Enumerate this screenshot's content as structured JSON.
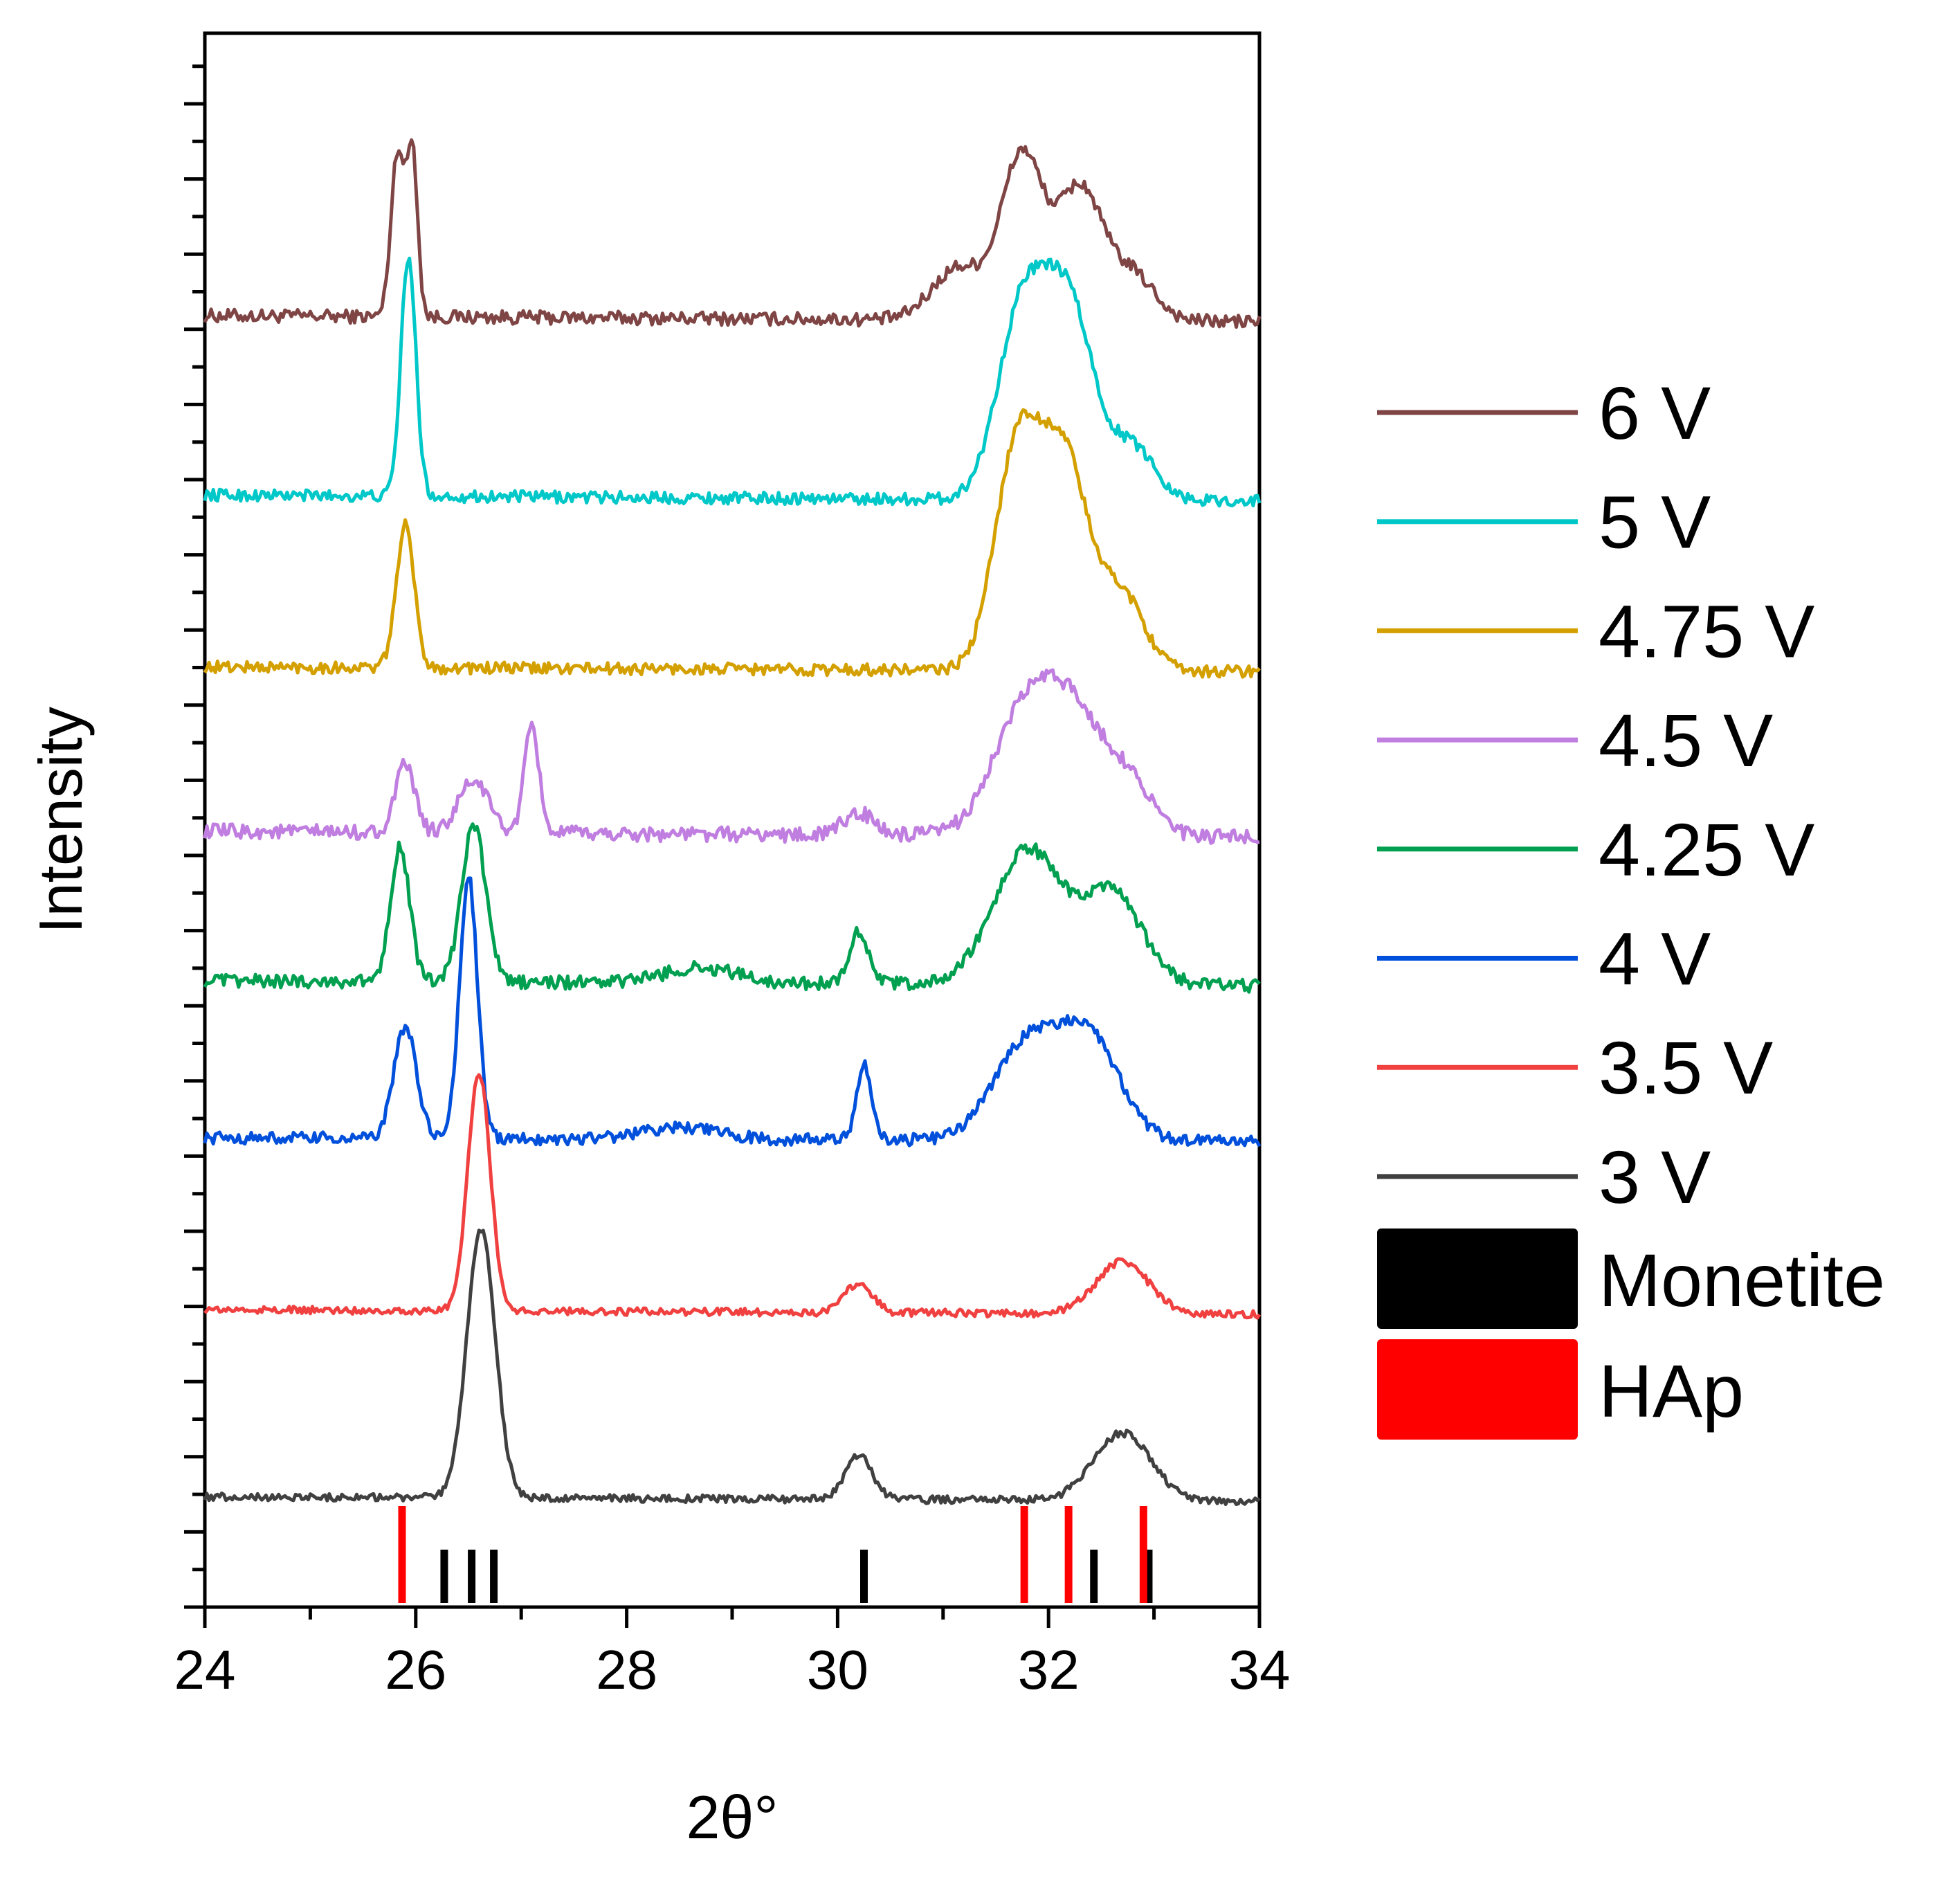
{
  "chart_data": {
    "type": "line",
    "title": "",
    "xlabel": "2θ°",
    "ylabel": "Intensity",
    "xlim": [
      24,
      34
    ],
    "x_ticks": [
      24,
      26,
      28,
      30,
      32,
      34
    ],
    "x_tick_labels": [
      "24",
      "26",
      "28",
      "30",
      "32",
      "34"
    ],
    "y_ticks_shown": false,
    "grid": false,
    "legend_position": "right",
    "series": [
      {
        "name": "6 V",
        "color": "#7f4444",
        "offset": 8.3,
        "baseline": 0.2,
        "slope": -0.004,
        "noise": 0.045,
        "peaks": [
          [
            25.83,
            1.12,
            0.09
          ],
          [
            25.97,
            1.08,
            0.07
          ],
          [
            31.75,
            1.1,
            0.28
          ],
          [
            32.3,
            0.88,
            0.3
          ],
          [
            32.8,
            0.3,
            0.3
          ],
          [
            31.15,
            0.35,
            0.35
          ]
        ]
      },
      {
        "name": "5 V",
        "color": "#00c8c8",
        "offset": 7.1,
        "baseline": 0.2,
        "slope": -0.004,
        "noise": 0.04,
        "peaks": [
          [
            25.93,
            1.6,
            0.1
          ],
          [
            31.75,
            1.25,
            0.33
          ],
          [
            32.2,
            1.25,
            0.33
          ],
          [
            32.8,
            0.35,
            0.3
          ]
        ]
      },
      {
        "name": "4.75 V",
        "color": "#d4a000",
        "offset": 5.95,
        "baseline": 0.2,
        "slope": -0.003,
        "noise": 0.04,
        "peaks": [
          [
            25.9,
            0.95,
            0.12
          ],
          [
            31.7,
            1.45,
            0.3
          ],
          [
            32.15,
            1.4,
            0.32
          ],
          [
            32.7,
            0.5,
            0.3
          ]
        ]
      },
      {
        "name": "4.5 V",
        "color": "#c07ee0",
        "offset": 4.85,
        "baseline": 0.2,
        "slope": -0.004,
        "noise": 0.05,
        "peaks": [
          [
            25.9,
            0.45,
            0.13
          ],
          [
            26.55,
            0.35,
            0.2
          ],
          [
            27.1,
            0.7,
            0.1
          ],
          [
            30.2,
            0.15,
            0.2
          ],
          [
            31.8,
            0.85,
            0.45
          ],
          [
            32.3,
            0.65,
            0.4
          ],
          [
            32.8,
            0.3,
            0.3
          ]
        ]
      },
      {
        "name": "4.25 V",
        "color": "#00a050",
        "offset": 3.85,
        "baseline": 0.2,
        "slope": -0.003,
        "noise": 0.045,
        "peaks": [
          [
            25.85,
            0.9,
            0.13
          ],
          [
            26.55,
            1.05,
            0.16
          ],
          [
            30.2,
            0.35,
            0.13
          ],
          [
            31.8,
            0.9,
            0.45
          ],
          [
            32.6,
            0.6,
            0.4
          ],
          [
            28.7,
            0.1,
            0.5
          ]
        ]
      },
      {
        "name": "4 V",
        "color": "#0050dc",
        "offset": 2.85,
        "baseline": 0.15,
        "slope": -0.002,
        "noise": 0.04,
        "peaks": [
          [
            25.9,
            0.75,
            0.15
          ],
          [
            26.5,
            1.75,
            0.12
          ],
          [
            30.25,
            0.5,
            0.1
          ],
          [
            31.8,
            0.65,
            0.45
          ],
          [
            32.4,
            0.65,
            0.4
          ],
          [
            28.5,
            0.08,
            0.5
          ]
        ]
      },
      {
        "name": "3.5 V",
        "color": "#f04040",
        "offset": 1.7,
        "baseline": 0.15,
        "slope": -0.003,
        "noise": 0.025,
        "peaks": [
          [
            26.6,
            1.6,
            0.15
          ],
          [
            30.2,
            0.2,
            0.18
          ],
          [
            32.7,
            0.35,
            0.35
          ]
        ]
      },
      {
        "name": "3 V",
        "color": "#404040",
        "offset": 0.5,
        "baseline": 0.1,
        "slope": -0.003,
        "noise": 0.025,
        "peaks": [
          [
            26.62,
            1.8,
            0.19
          ],
          [
            30.2,
            0.3,
            0.18
          ],
          [
            32.7,
            0.45,
            0.38
          ]
        ]
      }
    ],
    "reference_patterns": [
      {
        "name": "Monetite",
        "color": "#000000",
        "positions": [
          26.27,
          26.53,
          26.74,
          30.25,
          32.43,
          32.95
        ],
        "relative_height": 0.55
      },
      {
        "name": "HAp",
        "color": "#ff0000",
        "positions": [
          25.87,
          31.77,
          32.19,
          32.9
        ],
        "relative_height": 1.0
      }
    ]
  },
  "legend": {
    "items": [
      "6 V",
      "5 V",
      "4.75 V",
      "4.5 V",
      "4.25 V",
      "4 V",
      "3.5 V",
      "3 V"
    ],
    "references": [
      "Monetite",
      "HAp"
    ]
  }
}
